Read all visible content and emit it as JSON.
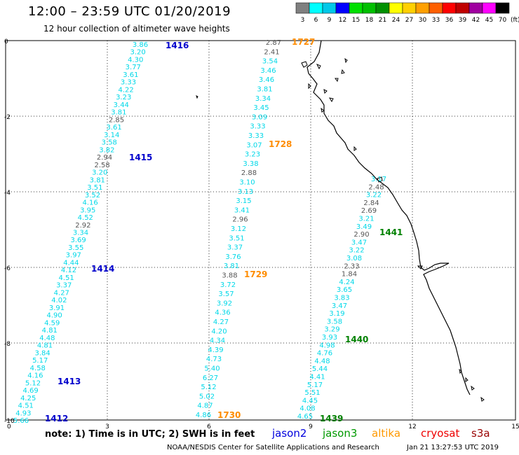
{
  "header": {
    "title": "12:00 – 23:59 UTC 01/20/2019",
    "subtitle": "12 hour collection of altimeter wave heights"
  },
  "legend": {
    "levels": [
      "3",
      "6",
      "9",
      "12",
      "15",
      "18",
      "21",
      "24",
      "27",
      "30",
      "33",
      "36",
      "39",
      "42",
      "45",
      "70"
    ],
    "unit": "(ft)",
    "colors": [
      "#808080",
      "#00ffff",
      "#00c8e8",
      "#0000ff",
      "#00e000",
      "#00c000",
      "#009000",
      "#ffff00",
      "#ffd000",
      "#ffa000",
      "#ff6000",
      "#ff0000",
      "#c00000",
      "#a000a0",
      "#ff00ff",
      "#000000"
    ]
  },
  "axes": {
    "x_ticks": [
      "0",
      "3",
      "6",
      "9",
      "12",
      "15"
    ],
    "y_ticks": [
      "0",
      "-2",
      "-4",
      "-6",
      "-8",
      "-10"
    ]
  },
  "colors": {
    "swh_low": "#00d8e8",
    "swh_missing": "#555555",
    "pass_jason2": "#0000cc",
    "pass_altika": "#ff8c00",
    "pass_jason3": "#008000"
  },
  "tracks": [
    {
      "id": "jason2-west",
      "passes": [
        "1416",
        "1415",
        "1414",
        "1413",
        "1412"
      ],
      "values": [
        "3.86",
        "3.20",
        "4.30",
        "3.77",
        "3.61",
        "3.33",
        "4.22",
        "3.23",
        "3.44",
        "3.81",
        "2.85",
        "3.61",
        "3.14",
        "3.58",
        "3.82",
        "2.94",
        "2.58",
        "3.20",
        "3.81",
        "3.51",
        "3.52",
        "4.16",
        "3.95",
        "4.52",
        "2.92",
        "3.34",
        "3.69",
        "3.55",
        "3.97",
        "4.44",
        "4.12",
        "4.51",
        "3.37",
        "4.27",
        "4.02",
        "3.91",
        "4.90",
        "4.59",
        "4.81",
        "4.48",
        "4.81",
        "3.84",
        "5.17",
        "4.58",
        "4.16",
        "5.12",
        "4.69",
        "4.25",
        "4.51",
        "4.93",
        "5.66"
      ]
    },
    {
      "id": "altika-middle",
      "passes": [
        "1727",
        "1728",
        "1729",
        "1730"
      ],
      "values": [
        "2.87",
        "2.41",
        "3.54",
        "3.46",
        "3.46",
        "3.81",
        "3.34",
        "3.45",
        "3.09",
        "3.33",
        "3.33",
        "3.07",
        "3.23",
        "3.38",
        "2.88",
        "3.10",
        "3.13",
        "3.15",
        "3.41",
        "2.96",
        "3.12",
        "3.51",
        "3.37",
        "3.76",
        "3.81",
        "3.88",
        "3.72",
        "3.57",
        "3.92",
        "4.36",
        "4.27",
        "4.20",
        "4.34",
        "4.39",
        "4.73",
        "5.40",
        "6.27",
        "5.12",
        "5.02",
        "4.87",
        "4.86"
      ]
    },
    {
      "id": "jason3-east",
      "passes": [
        "1441",
        "1440",
        "1439"
      ],
      "values": [
        "3.17",
        "2.48",
        "3.22",
        "2.84",
        "2.69",
        "3.21",
        "3.49",
        "2.90",
        "3.47",
        "3.22",
        "3.08",
        "2.33",
        "1.84",
        "4.24",
        "3.65",
        "3.83",
        "3.47",
        "3.19",
        "3.58",
        "3.29",
        "3.93",
        "4.98",
        "4.76",
        "4.48",
        "5.44",
        "4.41",
        "5.17",
        "5.51",
        "4.45",
        "4.08",
        "4.65"
      ]
    }
  ],
  "footer": {
    "note": "note:  1) Time is in UTC;  2) SWH is in feet",
    "satellites": [
      {
        "name": "jason2",
        "color": "#0000dd"
      },
      {
        "name": "jason3",
        "color": "#009900"
      },
      {
        "name": "altika",
        "color": "#ff9900"
      },
      {
        "name": "cryosat",
        "color": "#ee0000"
      },
      {
        "name": "s3a",
        "color": "#990000"
      }
    ],
    "credit": "NOAA/NESDIS Center for Satellite Applications and Research",
    "stamp": "Jan 21 13:27:53 UTC 2019"
  }
}
